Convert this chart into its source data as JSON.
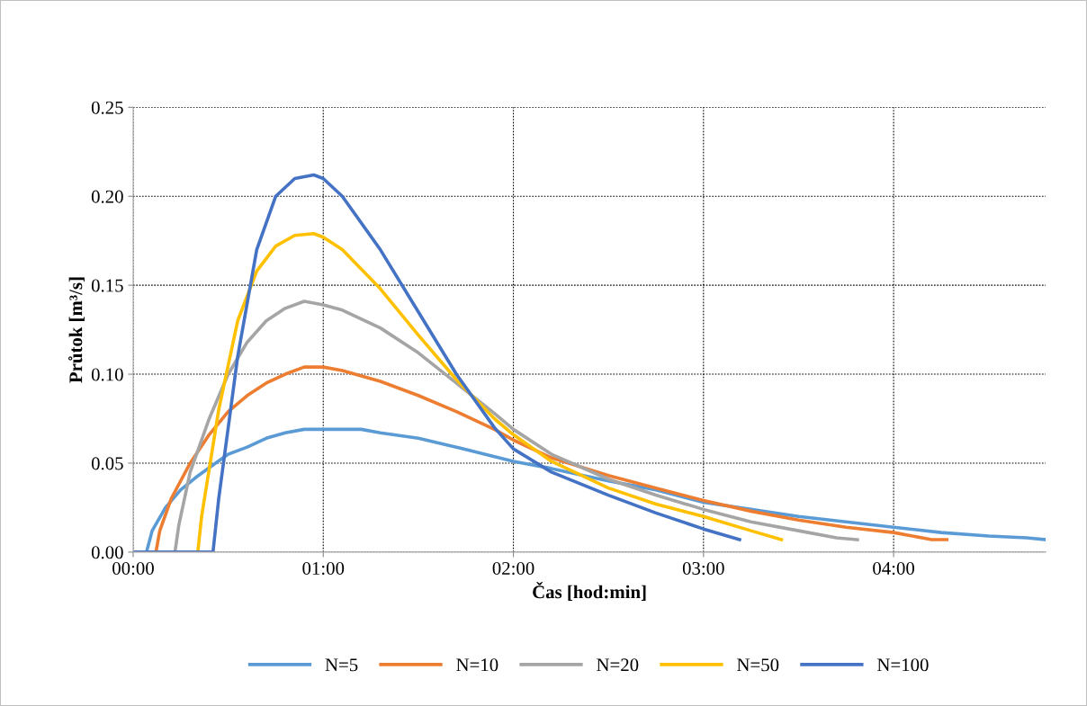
{
  "chart_data": {
    "type": "line",
    "xlabel": "Čas [hod:min]",
    "ylabel": "Průtok [m³/s]",
    "xlim": [
      0,
      4.8
    ],
    "xticks": [
      {
        "value": 0,
        "label": "00:00"
      },
      {
        "value": 1,
        "label": "01:00"
      },
      {
        "value": 2,
        "label": "02:00"
      },
      {
        "value": 3,
        "label": "03:00"
      },
      {
        "value": 4,
        "label": "04:00"
      }
    ],
    "ylim": [
      0,
      0.25
    ],
    "yticks": [
      {
        "value": 0,
        "label": "0.00"
      },
      {
        "value": 0.05,
        "label": "0.05"
      },
      {
        "value": 0.1,
        "label": "0.10"
      },
      {
        "value": 0.15,
        "label": "0.15"
      },
      {
        "value": 0.2,
        "label": "0.20"
      },
      {
        "value": 0.25,
        "label": "0.25"
      }
    ],
    "grid": true,
    "legend": "bottom",
    "marker": "none",
    "line_style": "solid",
    "series": [
      {
        "name": "N=5",
        "color": "#5b9bd5",
        "x": [
          0,
          0.07,
          0.1,
          0.17,
          0.25,
          0.33,
          0.42,
          0.5,
          0.6,
          0.7,
          0.8,
          0.9,
          1.0,
          1.2,
          1.3,
          1.5,
          1.7,
          2.0,
          2.2,
          2.5,
          2.75,
          3.0,
          3.25,
          3.5,
          3.75,
          4.0,
          4.25,
          4.5,
          4.7,
          4.8
        ],
        "values": [
          0,
          0,
          0.012,
          0.025,
          0.035,
          0.042,
          0.049,
          0.055,
          0.059,
          0.064,
          0.067,
          0.069,
          0.069,
          0.069,
          0.067,
          0.064,
          0.059,
          0.051,
          0.047,
          0.04,
          0.035,
          0.028,
          0.024,
          0.02,
          0.017,
          0.014,
          0.011,
          0.009,
          0.008,
          0.007
        ]
      },
      {
        "name": "N=10",
        "color": "#ed7d31",
        "x": [
          0,
          0.12,
          0.14,
          0.2,
          0.3,
          0.4,
          0.5,
          0.6,
          0.7,
          0.8,
          0.9,
          1.0,
          1.1,
          1.3,
          1.5,
          1.7,
          1.9,
          2.0,
          2.2,
          2.5,
          2.75,
          3.0,
          3.25,
          3.5,
          3.75,
          4.0,
          4.2,
          4.28
        ],
        "values": [
          0,
          0,
          0.012,
          0.03,
          0.05,
          0.066,
          0.079,
          0.088,
          0.095,
          0.1,
          0.104,
          0.104,
          0.102,
          0.096,
          0.088,
          0.079,
          0.069,
          0.063,
          0.053,
          0.043,
          0.036,
          0.029,
          0.023,
          0.018,
          0.014,
          0.011,
          0.007,
          0.007
        ]
      },
      {
        "name": "N=20",
        "color": "#a5a5a5",
        "x": [
          0,
          0.22,
          0.24,
          0.3,
          0.4,
          0.5,
          0.6,
          0.7,
          0.8,
          0.9,
          1.0,
          1.1,
          1.3,
          1.5,
          1.7,
          1.9,
          2.0,
          2.2,
          2.5,
          2.75,
          3.0,
          3.25,
          3.5,
          3.7,
          3.81
        ],
        "values": [
          0,
          0,
          0.015,
          0.045,
          0.075,
          0.1,
          0.118,
          0.13,
          0.137,
          0.141,
          0.139,
          0.136,
          0.126,
          0.112,
          0.095,
          0.078,
          0.069,
          0.055,
          0.041,
          0.032,
          0.024,
          0.017,
          0.012,
          0.008,
          0.007
        ]
      },
      {
        "name": "N=50",
        "color": "#ffc000",
        "x": [
          0,
          0.34,
          0.36,
          0.45,
          0.55,
          0.65,
          0.75,
          0.85,
          0.95,
          1.0,
          1.1,
          1.3,
          1.5,
          1.7,
          1.9,
          2.0,
          2.2,
          2.5,
          2.75,
          3.0,
          3.25,
          3.41
        ],
        "values": [
          0,
          0,
          0.02,
          0.08,
          0.13,
          0.158,
          0.172,
          0.178,
          0.179,
          0.177,
          0.17,
          0.148,
          0.122,
          0.097,
          0.075,
          0.066,
          0.051,
          0.036,
          0.027,
          0.02,
          0.012,
          0.007
        ]
      },
      {
        "name": "N=100",
        "color": "#4472c4",
        "x": [
          0,
          0.42,
          0.45,
          0.5,
          0.55,
          0.65,
          0.75,
          0.85,
          0.95,
          1.0,
          1.1,
          1.3,
          1.5,
          1.7,
          1.9,
          2.0,
          2.2,
          2.5,
          2.75,
          3.0,
          3.19
        ],
        "values": [
          0,
          0,
          0.03,
          0.07,
          0.11,
          0.17,
          0.2,
          0.21,
          0.212,
          0.21,
          0.2,
          0.17,
          0.135,
          0.1,
          0.07,
          0.058,
          0.045,
          0.032,
          0.022,
          0.013,
          0.007
        ]
      }
    ]
  }
}
